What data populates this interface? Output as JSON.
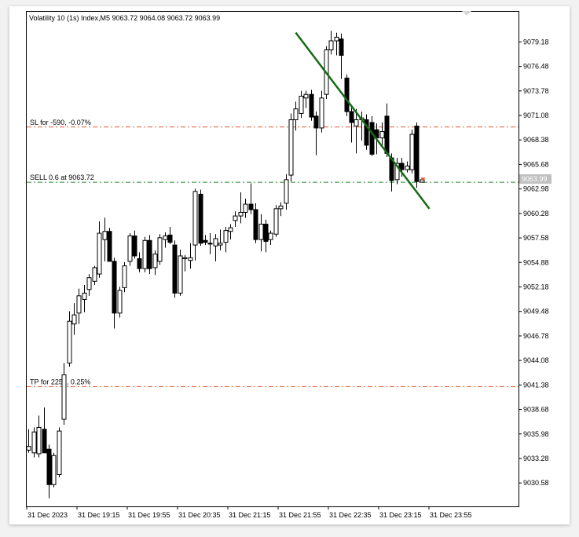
{
  "chart_data": {
    "type": "candlestick",
    "symbol_line": "Volatility 10 (1s) Index,M5  9063.72 9064.08 9063.72 9063.99",
    "ylim": [
      9028.0,
      9082.5
    ],
    "y_ticks": [
      "9079.18",
      "9076.48",
      "9073.78",
      "9071.08",
      "9068.38",
      "9065.68",
      "9062.98",
      "9060.28",
      "9057.58",
      "9054.88",
      "9052.18",
      "9049.48",
      "9046.78",
      "9044.08",
      "9041.38",
      "9038.68",
      "9035.98",
      "9033.28",
      "9030.58"
    ],
    "x_ticks": [
      "31 Dec 2023",
      "31 Dec 19:15",
      "31 Dec 19:55",
      "31 Dec 20:35",
      "31 Dec 21:15",
      "31 Dec 21:55",
      "31 Dec 22:35",
      "31 Dec 23:15",
      "31 Dec 23:55"
    ],
    "current_price": "9063.99",
    "levels": [
      {
        "name": "SL for -590, -0.07%",
        "value": 9069.8,
        "color": "#e0603a",
        "style": "dashdot"
      },
      {
        "name": "SELL 0.6 at 9063.72",
        "value": 9063.72,
        "color": "#2e8b2e",
        "style": "dashdot"
      },
      {
        "name": "TP for 2255, 0.25%",
        "value": 9041.2,
        "color": "#e0603a",
        "style": "dashdot"
      }
    ],
    "trendline": {
      "color": "#156b15",
      "from": {
        "index": 53,
        "price": 9080.2
      },
      "to": {
        "index": 79.5,
        "price": 9060.8
      }
    },
    "candles": [
      {
        "o": 9034.2,
        "h": 9036.5,
        "l": 9033.9,
        "c": 9034.6
      },
      {
        "o": 9033.9,
        "h": 9036.7,
        "l": 9033.4,
        "c": 9036.2
      },
      {
        "o": 9033.8,
        "h": 9038.0,
        "l": 9033.4,
        "c": 9036.7
      },
      {
        "o": 9036.5,
        "h": 9038.9,
        "l": 9033.9,
        "c": 9033.9
      },
      {
        "o": 9034.3,
        "h": 9034.8,
        "l": 9028.9,
        "c": 9030.4
      },
      {
        "o": 9030.4,
        "h": 9033.9,
        "l": 9030.1,
        "c": 9033.6
      },
      {
        "o": 9031.5,
        "h": 9036.7,
        "l": 9031.2,
        "c": 9036.3
      },
      {
        "o": 9037.6,
        "h": 9043.8,
        "l": 9037.0,
        "c": 9042.5
      },
      {
        "o": 9043.8,
        "h": 9049.5,
        "l": 9043.4,
        "c": 9048.4
      },
      {
        "o": 9048.1,
        "h": 9050.4,
        "l": 9046.9,
        "c": 9049.1
      },
      {
        "o": 9049.3,
        "h": 9052.0,
        "l": 9048.1,
        "c": 9051.2
      },
      {
        "o": 9050.8,
        "h": 9052.4,
        "l": 9049.4,
        "c": 9051.5
      },
      {
        "o": 9051.9,
        "h": 9053.6,
        "l": 9051.2,
        "c": 9053.2
      },
      {
        "o": 9052.8,
        "h": 9054.5,
        "l": 9052.4,
        "c": 9054.3
      },
      {
        "o": 9053.6,
        "h": 9059.4,
        "l": 9053.2,
        "c": 9058.1
      },
      {
        "o": 9057.4,
        "h": 9059.8,
        "l": 9055.0,
        "c": 9058.3
      },
      {
        "o": 9058.3,
        "h": 9058.7,
        "l": 9055.0,
        "c": 9055.0
      },
      {
        "o": 9055.0,
        "h": 9055.4,
        "l": 9047.6,
        "c": 9049.3
      },
      {
        "o": 9049.3,
        "h": 9052.2,
        "l": 9048.8,
        "c": 9051.8
      },
      {
        "o": 9052.1,
        "h": 9054.9,
        "l": 9051.6,
        "c": 9054.5
      },
      {
        "o": 9055.0,
        "h": 9058.1,
        "l": 9054.5,
        "c": 9057.8
      },
      {
        "o": 9057.8,
        "h": 9058.4,
        "l": 9055.3,
        "c": 9055.6
      },
      {
        "o": 9055.3,
        "h": 9056.0,
        "l": 9053.8,
        "c": 9054.2
      },
      {
        "o": 9054.2,
        "h": 9057.7,
        "l": 9053.8,
        "c": 9057.3
      },
      {
        "o": 9057.3,
        "h": 9057.9,
        "l": 9053.6,
        "c": 9054.2
      },
      {
        "o": 9054.3,
        "h": 9056.2,
        "l": 9053.5,
        "c": 9055.8
      },
      {
        "o": 9055.0,
        "h": 9058.0,
        "l": 9054.6,
        "c": 9057.6
      },
      {
        "o": 9057.4,
        "h": 9058.2,
        "l": 9056.5,
        "c": 9057.8
      },
      {
        "o": 9057.9,
        "h": 9058.8,
        "l": 9056.9,
        "c": 9057.1
      },
      {
        "o": 9056.8,
        "h": 9057.3,
        "l": 9051.0,
        "c": 9051.5
      },
      {
        "o": 9051.5,
        "h": 9056.3,
        "l": 9051.2,
        "c": 9055.6
      },
      {
        "o": 9055.3,
        "h": 9055.7,
        "l": 9053.9,
        "c": 9055.4
      },
      {
        "o": 9055.1,
        "h": 9057.0,
        "l": 9054.2,
        "c": 9055.4
      },
      {
        "o": 9056.8,
        "h": 9063.0,
        "l": 9055.1,
        "c": 9062.7
      },
      {
        "o": 9062.4,
        "h": 9062.9,
        "l": 9056.7,
        "c": 9057.0
      },
      {
        "o": 9057.3,
        "h": 9057.9,
        "l": 9056.8,
        "c": 9057.1
      },
      {
        "o": 9057.0,
        "h": 9058.1,
        "l": 9055.8,
        "c": 9056.9
      },
      {
        "o": 9056.7,
        "h": 9058.0,
        "l": 9055.0,
        "c": 9057.5
      },
      {
        "o": 9056.8,
        "h": 9058.5,
        "l": 9056.2,
        "c": 9057.0
      },
      {
        "o": 9057.1,
        "h": 9058.8,
        "l": 9056.0,
        "c": 9058.4
      },
      {
        "o": 9058.3,
        "h": 9059.1,
        "l": 9057.4,
        "c": 9058.7
      },
      {
        "o": 9059.5,
        "h": 9060.5,
        "l": 9058.8,
        "c": 9060.0
      },
      {
        "o": 9060.0,
        "h": 9062.6,
        "l": 9059.2,
        "c": 9060.4
      },
      {
        "o": 9060.4,
        "h": 9061.9,
        "l": 9059.8,
        "c": 9061.3
      },
      {
        "o": 9061.3,
        "h": 9063.6,
        "l": 9060.2,
        "c": 9060.7
      },
      {
        "o": 9060.7,
        "h": 9061.4,
        "l": 9057.0,
        "c": 9057.4
      },
      {
        "o": 9057.4,
        "h": 9060.2,
        "l": 9056.1,
        "c": 9059.1
      },
      {
        "o": 9059.1,
        "h": 9059.6,
        "l": 9056.0,
        "c": 9057.2
      },
      {
        "o": 9057.4,
        "h": 9058.4,
        "l": 9056.8,
        "c": 9058.1
      },
      {
        "o": 9058.0,
        "h": 9061.2,
        "l": 9057.7,
        "c": 9060.8
      },
      {
        "o": 9060.8,
        "h": 9061.5,
        "l": 9060.0,
        "c": 9061.1
      },
      {
        "o": 9061.4,
        "h": 9064.6,
        "l": 9060.7,
        "c": 9064.0
      },
      {
        "o": 9064.5,
        "h": 9071.3,
        "l": 9063.8,
        "c": 9070.6
      },
      {
        "o": 9070.6,
        "h": 9072.6,
        "l": 9069.4,
        "c": 9071.8
      },
      {
        "o": 9071.3,
        "h": 9073.8,
        "l": 9070.8,
        "c": 9073.2
      },
      {
        "o": 9073.0,
        "h": 9073.8,
        "l": 9071.9,
        "c": 9073.4
      },
      {
        "o": 9073.4,
        "h": 9073.9,
        "l": 9070.5,
        "c": 9070.9
      },
      {
        "o": 9071.0,
        "h": 9071.5,
        "l": 9066.7,
        "c": 9069.7
      },
      {
        "o": 9069.7,
        "h": 9073.8,
        "l": 9069.2,
        "c": 9073.0
      },
      {
        "o": 9073.4,
        "h": 9078.7,
        "l": 9072.9,
        "c": 9078.3
      },
      {
        "o": 9078.3,
        "h": 9080.4,
        "l": 9077.8,
        "c": 9079.3
      },
      {
        "o": 9079.3,
        "h": 9080.2,
        "l": 9077.7,
        "c": 9079.7
      },
      {
        "o": 9079.5,
        "h": 9080.1,
        "l": 9075.1,
        "c": 9077.7
      },
      {
        "o": 9075.2,
        "h": 9075.6,
        "l": 9071.0,
        "c": 9071.5
      },
      {
        "o": 9071.5,
        "h": 9072.0,
        "l": 9068.1,
        "c": 9070.3
      },
      {
        "o": 9069.9,
        "h": 9071.8,
        "l": 9066.9,
        "c": 9070.6
      },
      {
        "o": 9070.6,
        "h": 9071.5,
        "l": 9068.3,
        "c": 9070.8
      },
      {
        "o": 9070.6,
        "h": 9071.2,
        "l": 9067.3,
        "c": 9067.8
      },
      {
        "o": 9070.3,
        "h": 9071.0,
        "l": 9066.6,
        "c": 9066.8
      },
      {
        "o": 9069.5,
        "h": 9070.2,
        "l": 9066.8,
        "c": 9068.6
      },
      {
        "o": 9068.6,
        "h": 9070.3,
        "l": 9067.6,
        "c": 9069.3
      },
      {
        "o": 9071.0,
        "h": 9072.4,
        "l": 9066.5,
        "c": 9066.9
      },
      {
        "o": 9066.4,
        "h": 9066.9,
        "l": 9062.7,
        "c": 9063.9
      },
      {
        "o": 9064.0,
        "h": 9066.4,
        "l": 9063.5,
        "c": 9065.8
      },
      {
        "o": 9065.8,
        "h": 9066.4,
        "l": 9064.3,
        "c": 9065.1
      },
      {
        "o": 9065.1,
        "h": 9066.0,
        "l": 9064.8,
        "c": 9065.5
      },
      {
        "o": 9065.1,
        "h": 9069.5,
        "l": 9064.7,
        "c": 9069.0
      },
      {
        "o": 9069.9,
        "h": 9070.3,
        "l": 9063.1,
        "c": 9063.8
      },
      {
        "o": 9063.72,
        "h": 9064.08,
        "l": 9063.72,
        "c": 9063.99
      }
    ]
  }
}
